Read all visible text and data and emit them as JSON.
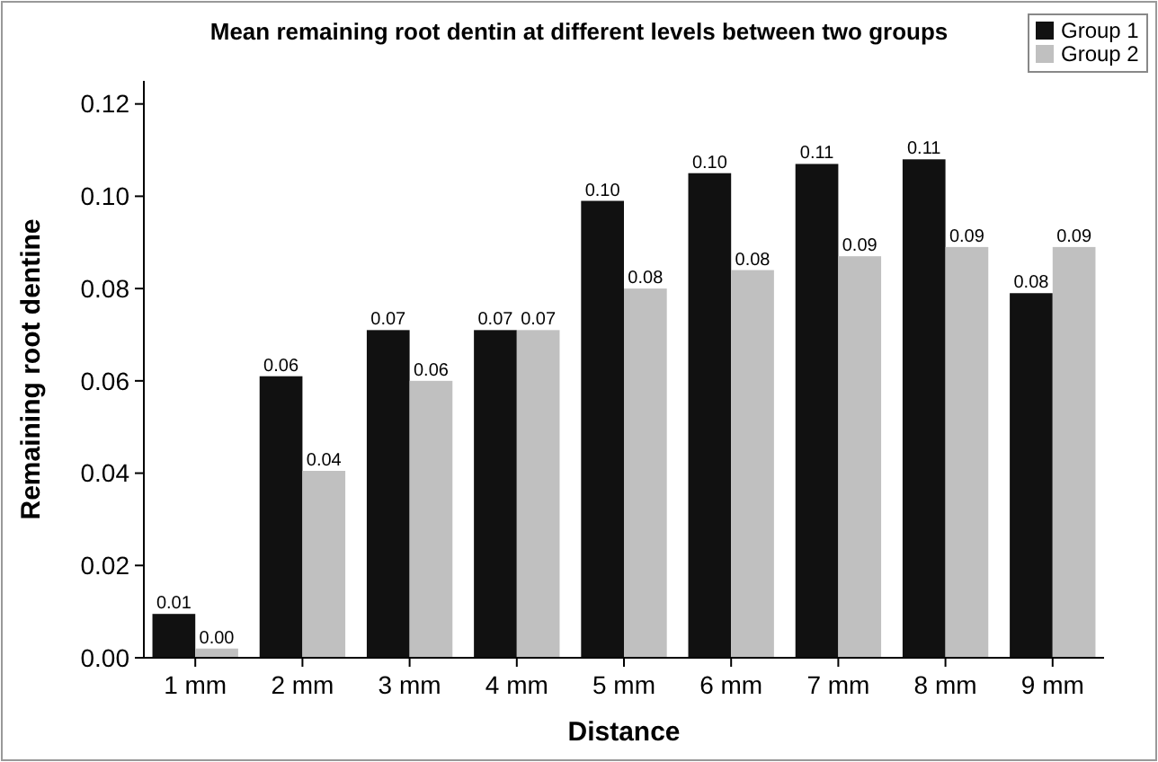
{
  "chart_data": {
    "type": "bar",
    "title": "Mean remaining root dentin at different levels between two groups",
    "xlabel": "Distance",
    "ylabel": "Remaining root dentine",
    "categories": [
      "1 mm",
      "2 mm",
      "3 mm",
      "4 mm",
      "5 mm",
      "6 mm",
      "7 mm",
      "8 mm",
      "9 mm"
    ],
    "series": [
      {
        "name": "Group 1",
        "color": "#111111",
        "values": [
          0.0095,
          0.061,
          0.071,
          0.071,
          0.099,
          0.105,
          0.107,
          0.108,
          0.079
        ],
        "value_labels": [
          "0.01",
          "0.06",
          "0.07",
          "0.07",
          "0.10",
          "0.10",
          "0.11",
          "0.11",
          "0.08"
        ]
      },
      {
        "name": "Group 2",
        "color": "#c0c0c0",
        "values": [
          0.002,
          0.0405,
          0.06,
          0.071,
          0.08,
          0.084,
          0.087,
          0.089,
          0.089
        ],
        "value_labels": [
          "0.00",
          "0.04",
          "0.06",
          "0.07",
          "0.08",
          "0.08",
          "0.09",
          "0.09",
          "0.09"
        ]
      }
    ],
    "ylim": [
      0,
      0.125
    ],
    "yticks": [
      {
        "value": 0,
        "label": "0.00"
      },
      {
        "value": 0.02,
        "label": "0.02"
      },
      {
        "value": 0.04,
        "label": "0.04"
      },
      {
        "value": 0.06,
        "label": "0.06"
      },
      {
        "value": 0.08,
        "label": "0.08"
      },
      {
        "value": 0.1,
        "label": "0.10"
      },
      {
        "value": 0.12,
        "label": "0.12"
      }
    ],
    "legend": "top right"
  }
}
